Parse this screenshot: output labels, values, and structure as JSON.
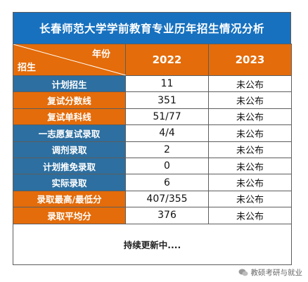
{
  "title": "长春师范大学学前教育专业历年招生情况分析",
  "header": {
    "corner_col": "年份",
    "corner_row": "招生",
    "years": [
      "2022",
      "2023"
    ]
  },
  "rows": [
    {
      "label": "计划招生",
      "v2022": "11",
      "v2023": "未公布",
      "color": "blue"
    },
    {
      "label": "复试分数线",
      "v2022": "351",
      "v2023": "未公布",
      "color": "orange"
    },
    {
      "label": "复试单科线",
      "v2022": "51/77",
      "v2023": "未公布",
      "color": "orange"
    },
    {
      "label": "一志愿复试录取",
      "v2022": "4/4",
      "v2023": "未公布",
      "color": "blue"
    },
    {
      "label": "调剂录取",
      "v2022": "2",
      "v2023": "未公布",
      "color": "blue"
    },
    {
      "label": "计划推免录取",
      "v2022": "0",
      "v2023": "未公布",
      "color": "blue"
    },
    {
      "label": "实际录取",
      "v2022": "6",
      "v2023": "未公布",
      "color": "blue"
    },
    {
      "label": "录取最高/最低分",
      "v2022": "407/355",
      "v2023": "未公布",
      "color": "orange"
    },
    {
      "label": "录取平均分",
      "v2022": "376",
      "v2023": "未公布",
      "color": "orange"
    }
  ],
  "footer": "持续更新中....",
  "watermark": "教硕考研与就业",
  "colors": {
    "title_bg": "#1771bf",
    "header_bg": "#e46c0a",
    "label_blue": "#2d6fa0",
    "label_orange": "#e46c0a"
  }
}
